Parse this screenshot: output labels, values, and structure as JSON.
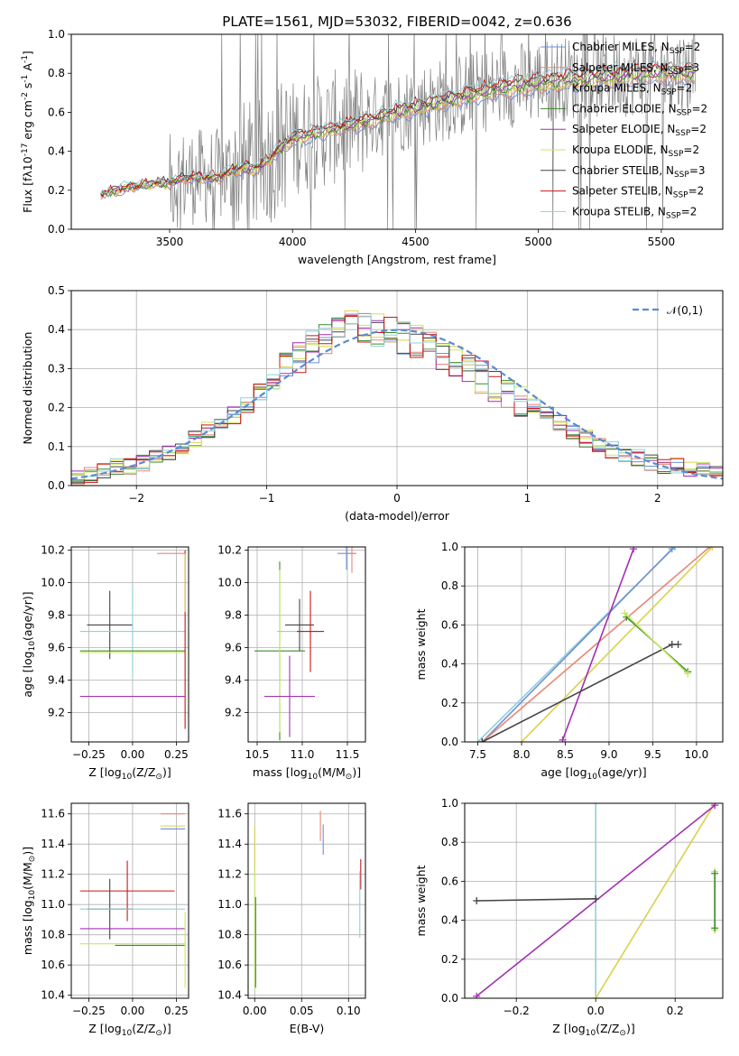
{
  "figure": {
    "title": "PLATE=1561, MJD=53032, FIBERID=0042, z=0.636"
  },
  "models": [
    {
      "name": "Chabrier MILES, N$_{SSP}$=2",
      "color": "#6f8fd8"
    },
    {
      "name": "Salpeter MILES, N$_{SSP}$=3",
      "color": "#e8877a"
    },
    {
      "name": "Kroupa MILES, N$_{SSP}$=2",
      "color": "#d9d24a"
    },
    {
      "name": "Chabrier ELODIE, N$_{SSP}$=2",
      "color": "#3a8a2a"
    },
    {
      "name": "Salpeter ELODIE, N$_{SSP}$=2",
      "color": "#a030b0"
    },
    {
      "name": "Kroupa ELODIE, N$_{SSP}$=2",
      "color": "#c8e860"
    },
    {
      "name": "Chabrier STELIB, N$_{SSP}$=3",
      "color": "#454545"
    },
    {
      "name": "Salpeter STELIB, N$_{SSP}$=2",
      "color": "#cc1515"
    },
    {
      "name": "Kroupa STELIB, N$_{SSP}$=2",
      "color": "#8fd0d8"
    }
  ],
  "chart_data": [
    {
      "id": "spectrum",
      "type": "line",
      "xlabel": "wavelength [Angstrom, rest frame]",
      "ylabel": "Flux [f$_λ$10$^{-17}$ erg cm$^{-2}$ s$^{-1}$ A$^{-1}$]",
      "xlim": [
        3100,
        5750
      ],
      "ylim": [
        0,
        1.0
      ],
      "xticks": [
        3500,
        4000,
        4500,
        5000,
        5500
      ],
      "yticks": [
        0.0,
        0.2,
        0.4,
        0.6,
        0.8,
        1.0
      ],
      "xtick_labels": [
        "3500",
        "4000",
        "4500",
        "5000",
        "5500"
      ],
      "ytick_labels": [
        "0.0",
        "0.2",
        "0.4",
        "0.6",
        "0.8",
        "1.0"
      ],
      "grid": false,
      "legend": "right",
      "data_color": "#808080",
      "model_curve": {
        "x": [
          3200,
          3250,
          3300,
          3350,
          3400,
          3450,
          3500,
          3550,
          3600,
          3650,
          3700,
          3750,
          3800,
          3850,
          3900,
          3950,
          4000,
          4100,
          4200,
          4300,
          4400,
          4500,
          4600,
          4700,
          4800,
          4900,
          5000,
          5100,
          5200,
          5300,
          5400,
          5500,
          5600,
          5650
        ],
        "y": [
          0.17,
          0.19,
          0.21,
          0.22,
          0.23,
          0.24,
          0.24,
          0.26,
          0.27,
          0.27,
          0.27,
          0.3,
          0.32,
          0.31,
          0.36,
          0.42,
          0.47,
          0.5,
          0.53,
          0.56,
          0.6,
          0.63,
          0.66,
          0.69,
          0.72,
          0.74,
          0.76,
          0.77,
          0.78,
          0.79,
          0.8,
          0.81,
          0.81,
          0.81
        ]
      }
    },
    {
      "id": "residuals",
      "type": "bar",
      "xlabel": "(data-model)/error",
      "ylabel": "Normed distribution",
      "xlim": [
        -2.5,
        2.5
      ],
      "ylim": [
        0,
        0.5
      ],
      "xticks": [
        -2,
        -1,
        0,
        1,
        2
      ],
      "yticks": [
        0.0,
        0.1,
        0.2,
        0.3,
        0.4,
        0.5
      ],
      "xtick_labels": [
        "−2",
        "−1",
        "0",
        "1",
        "2"
      ],
      "ytick_labels": [
        "0.0",
        "0.1",
        "0.2",
        "0.3",
        "0.4",
        "0.5"
      ],
      "grid": true,
      "legend": "top-right",
      "legend_label": "$\\mathcal{N}(0,1)$",
      "normal_color": "#5b8bd0",
      "bin_width": 0.1,
      "hist_center": [
        0.02,
        0.03,
        0.04,
        0.05,
        0.05,
        0.06,
        0.07,
        0.08,
        0.1,
        0.12,
        0.14,
        0.16,
        0.18,
        0.21,
        0.24,
        0.27,
        0.3,
        0.33,
        0.36,
        0.38,
        0.4,
        0.41,
        0.41,
        0.4,
        0.39,
        0.38,
        0.37,
        0.36,
        0.34,
        0.32,
        0.3,
        0.28,
        0.26,
        0.24,
        0.22,
        0.2,
        0.18,
        0.16,
        0.14,
        0.12,
        0.1,
        0.09,
        0.08,
        0.07,
        0.06,
        0.05,
        0.05,
        0.04,
        0.04,
        0.03
      ]
    },
    {
      "id": "age-vs-Z",
      "type": "scatter",
      "xlabel": "Z [log$_{10}$(Z/Z$_\\odot$)]",
      "ylabel": "age  [log$_{10}$(age/yr)]",
      "xlim": [
        -0.35,
        0.32
      ],
      "ylim": [
        9.02,
        10.22
      ],
      "xticks": [
        -0.25,
        0.0,
        0.25
      ],
      "yticks": [
        9.2,
        9.4,
        9.6,
        9.8,
        10.0,
        10.2
      ],
      "xtick_labels": [
        "−0.25",
        "0.00",
        "0.25"
      ],
      "ytick_labels": [
        "9.2",
        "9.4",
        "9.6",
        "9.8",
        "10.0",
        "10.2"
      ],
      "grid": true,
      "errorbars": [
        {
          "model": 6,
          "x": -0.13,
          "y": 9.74,
          "xerr": 0.13,
          "yerr": 0.21
        },
        {
          "model": 8,
          "x": 0.0,
          "y": 9.7,
          "xerr": 0.3,
          "yerr": 0.28
        },
        {
          "model": 3,
          "x": 0.0,
          "y": 9.58,
          "xerr": 0.3,
          "yerr": 0.0
        },
        {
          "model": 5,
          "x": 0.0,
          "y": 9.57,
          "xerr": 0.3,
          "yerr": 0.0
        },
        {
          "model": 4,
          "x": 0.0,
          "y": 9.3,
          "xerr": 0.3,
          "yerr": 0.0
        },
        {
          "model": 1,
          "x": 0.22,
          "y": 10.18,
          "xerr": 0.08,
          "yerr": 0.0
        },
        {
          "model": 7,
          "x": 0.3,
          "y": 9.65,
          "xerr": 0.0,
          "yerr": 0.55
        },
        {
          "model": 2,
          "x": 0.3,
          "y": 10.0,
          "xerr": 0.0,
          "yerr": 0.18
        }
      ]
    },
    {
      "id": "age-vs-mass",
      "type": "scatter",
      "xlabel": "mass [log$_{10}$(M/M$_\\odot$)]",
      "ylabel": "",
      "xlim": [
        10.4,
        11.7
      ],
      "ylim": [
        9.02,
        10.22
      ],
      "xticks": [
        10.5,
        11.0,
        11.5
      ],
      "yticks": [
        9.2,
        9.4,
        9.6,
        9.8,
        10.0,
        10.2
      ],
      "xtick_labels": [
        "10.5",
        "11.0",
        "11.5"
      ],
      "ytick_labels": [
        "9.2",
        "9.4",
        "9.6",
        "9.8",
        "10.0",
        "10.2"
      ],
      "grid": true,
      "errorbars": [
        {
          "model": 3,
          "x": 10.75,
          "y": 9.58,
          "xerr": 0.28,
          "yerr": 0.55
        },
        {
          "model": 5,
          "x": 10.75,
          "y": 9.58,
          "xerr": 0.0,
          "yerr": 0.5
        },
        {
          "model": 4,
          "x": 10.86,
          "y": 9.3,
          "xerr": 0.28,
          "yerr": 0.25
        },
        {
          "model": 6,
          "x": 10.97,
          "y": 9.74,
          "xerr": 0.16,
          "yerr": 0.16
        },
        {
          "model": 8,
          "x": 10.97,
          "y": 9.7,
          "xerr": 0.25,
          "yerr": 0.0
        },
        {
          "model": 7,
          "x": 11.09,
          "y": 9.7,
          "xerr": 0.15,
          "yerr": 0.25
        },
        {
          "model": 0,
          "x": 11.49,
          "y": 10.18,
          "xerr": 0.1,
          "yerr": 0.1
        },
        {
          "model": 1,
          "x": 11.55,
          "y": 10.18,
          "xerr": 0.05,
          "yerr": 0.12
        }
      ]
    },
    {
      "id": "weight-vs-age",
      "type": "line",
      "xlabel": "age  [log$_{10}$(age/yr)]",
      "ylabel": "mass weight",
      "xlim": [
        7.35,
        10.3
      ],
      "ylim": [
        0,
        1.0
      ],
      "xticks": [
        7.5,
        8.0,
        8.5,
        9.0,
        9.5,
        10.0
      ],
      "yticks": [
        0.0,
        0.2,
        0.4,
        0.6,
        0.8,
        1.0
      ],
      "xtick_labels": [
        "7.5",
        "8.0",
        "8.5",
        "9.0",
        "9.5",
        "10.0"
      ],
      "ytick_labels": [
        "0.0",
        "0.2",
        "0.4",
        "0.6",
        "0.8",
        "1.0"
      ],
      "grid": true,
      "series": [
        {
          "model": 8,
          "x": [
            7.5,
            9.75
          ],
          "y": [
            0.0,
            1.0
          ]
        },
        {
          "model": 0,
          "x": [
            7.55,
            9.72
          ],
          "y": [
            0.0,
            0.99
          ]
        },
        {
          "model": 1,
          "x": [
            7.55,
            10.15
          ],
          "y": [
            0.0,
            1.0
          ]
        },
        {
          "model": 2,
          "x": [
            8.0,
            10.18
          ],
          "y": [
            0.0,
            1.0
          ]
        },
        {
          "model": 4,
          "x": [
            8.47,
            9.28
          ],
          "y": [
            0.01,
            0.99
          ]
        },
        {
          "model": 6,
          "x": [
            7.55,
            9.72,
            9.79
          ],
          "y": [
            0.0,
            0.5,
            0.5
          ]
        },
        {
          "model": 3,
          "x": [
            9.2,
            9.9
          ],
          "y": [
            0.64,
            0.36
          ]
        },
        {
          "model": 5,
          "x": [
            9.18,
            9.9
          ],
          "y": [
            0.66,
            0.35
          ]
        }
      ]
    },
    {
      "id": "mass-vs-Z",
      "type": "scatter",
      "xlabel": "Z [log$_{10}$(Z/Z$_\\odot$)]",
      "ylabel": "mass [log$_{10}$(M/M$_\\odot$)]",
      "xlim": [
        -0.35,
        0.32
      ],
      "ylim": [
        10.38,
        11.67
      ],
      "xticks": [
        -0.25,
        0.0,
        0.25
      ],
      "yticks": [
        10.4,
        10.6,
        10.8,
        11.0,
        11.2,
        11.4,
        11.6
      ],
      "xtick_labels": [
        "−0.25",
        "0.00",
        "0.25"
      ],
      "ytick_labels": [
        "10.4",
        "10.6",
        "10.8",
        "11.0",
        "11.2",
        "11.4",
        "11.6"
      ],
      "grid": true,
      "errorbars": [
        {
          "model": 7,
          "x": -0.03,
          "y": 11.09,
          "xerr": 0.27,
          "yerr": 0.2
        },
        {
          "model": 6,
          "x": -0.13,
          "y": 10.97,
          "xerr": 0.13,
          "yerr": 0.2
        },
        {
          "model": 8,
          "x": 0.0,
          "y": 10.97,
          "xerr": 0.3,
          "yerr": 0.0
        },
        {
          "model": 4,
          "x": 0.0,
          "y": 10.84,
          "xerr": 0.3,
          "yerr": 0.0
        },
        {
          "model": 5,
          "x": 0.0,
          "y": 10.74,
          "xerr": 0.3,
          "yerr": 0.0
        },
        {
          "model": 3,
          "x": 0.1,
          "y": 10.73,
          "xerr": 0.2,
          "yerr": 0.0
        },
        {
          "model": 1,
          "x": 0.23,
          "y": 11.6,
          "xerr": 0.07,
          "yerr": 0.0
        },
        {
          "model": 2,
          "x": 0.23,
          "y": 11.52,
          "xerr": 0.07,
          "yerr": 0.0
        },
        {
          "model": 0,
          "x": 0.23,
          "y": 11.5,
          "xerr": 0.07,
          "yerr": 0.0
        },
        {
          "model": 5,
          "x": 0.3,
          "y": 10.7,
          "xerr": 0.0,
          "yerr": 0.25
        }
      ]
    },
    {
      "id": "mass-vs-EBV",
      "type": "scatter",
      "xlabel": "E(B-V)",
      "ylabel": "",
      "xlim": [
        -0.007,
        0.118
      ],
      "ylim": [
        10.38,
        11.67
      ],
      "xticks": [
        0.0,
        0.05,
        0.1
      ],
      "yticks": [
        10.4,
        10.6,
        10.8,
        11.0,
        11.2,
        11.4,
        11.6
      ],
      "xtick_labels": [
        "0.00",
        "0.05",
        "0.10"
      ],
      "ytick_labels": [
        "10.4",
        "10.6",
        "10.8",
        "11.0",
        "11.2",
        "11.4",
        "11.6"
      ],
      "grid": true,
      "errorbars": [
        {
          "model": 2,
          "x": 0.0,
          "y": 11.35,
          "xerr": 0.0,
          "yerr": 0.17
        },
        {
          "model": 5,
          "x": 0.0,
          "y": 10.85,
          "xerr": 0.0,
          "yerr": 0.4
        },
        {
          "model": 3,
          "x": 0.001,
          "y": 10.75,
          "xerr": 0.0,
          "yerr": 0.3
        },
        {
          "model": 1,
          "x": 0.07,
          "y": 11.52,
          "xerr": 0.0,
          "yerr": 0.1
        },
        {
          "model": 0,
          "x": 0.073,
          "y": 11.43,
          "xerr": 0.0,
          "yerr": 0.1
        },
        {
          "model": 7,
          "x": 0.113,
          "y": 11.2,
          "xerr": 0.0,
          "yerr": 0.1
        },
        {
          "model": 8,
          "x": 0.112,
          "y": 11.0,
          "xerr": 0.0,
          "yerr": 0.22
        }
      ]
    },
    {
      "id": "weight-vs-Z",
      "type": "line",
      "xlabel": "Z [log$_{10}$(Z/Z$_\\odot$)]",
      "ylabel": "mass weight",
      "xlim": [
        -0.33,
        0.32
      ],
      "ylim": [
        0,
        1.0
      ],
      "xticks": [
        -0.2,
        0.0,
        0.2
      ],
      "yticks": [
        0.0,
        0.2,
        0.4,
        0.6,
        0.8,
        1.0
      ],
      "xtick_labels": [
        "−0.2",
        "0.0",
        "0.2"
      ],
      "ytick_labels": [
        "0.0",
        "0.2",
        "0.4",
        "0.6",
        "0.8",
        "1.0"
      ],
      "grid": true,
      "series": [
        {
          "model": 8,
          "x": [
            0.0,
            0.0
          ],
          "y": [
            0.0,
            1.0
          ]
        },
        {
          "model": 2,
          "x": [
            0.0,
            0.3
          ],
          "y": [
            0.0,
            1.0
          ]
        },
        {
          "model": 4,
          "x": [
            -0.3,
            0.3
          ],
          "y": [
            0.01,
            0.99
          ]
        },
        {
          "model": 6,
          "x": [
            -0.3,
            0.0
          ],
          "y": [
            0.5,
            0.51
          ]
        },
        {
          "model": 5,
          "x": [
            0.3,
            0.3
          ],
          "y": [
            0.35,
            0.65
          ]
        },
        {
          "model": 3,
          "x": [
            0.3,
            0.3
          ],
          "y": [
            0.36,
            0.64
          ]
        }
      ]
    }
  ]
}
